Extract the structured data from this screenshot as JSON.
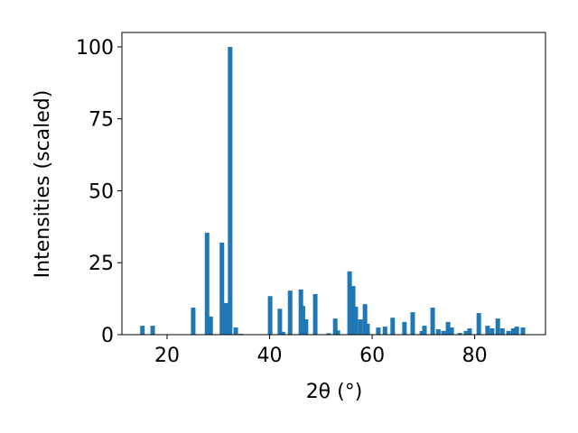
{
  "chart_data": {
    "type": "bar",
    "xlabel": "2θ (°)",
    "ylabel": "Intensities (scaled)",
    "color": "#1f77b4",
    "x": [
      15.2,
      17.2,
      25.1,
      27.8,
      28.5,
      30.7,
      31.5,
      32.3,
      33.4,
      34.4,
      40.1,
      42.0,
      42.6,
      44.0,
      46.1,
      46.5,
      47.1,
      48.9,
      51.5,
      52.8,
      53.3,
      55.6,
      56.3,
      56.8,
      57.7,
      58.6,
      59.1,
      61.2,
      62.5,
      64.0,
      66.3,
      67.9,
      69.7,
      70.2,
      71.8,
      72.9,
      73.9,
      74.8,
      75.5,
      77.1,
      78.3,
      79.0,
      80.8,
      82.5,
      83.4,
      84.5,
      85.4,
      86.6,
      87.5,
      88.2,
      89.4
    ],
    "values": [
      3.1,
      3.1,
      9.4,
      35.4,
      6.3,
      32,
      11,
      100,
      2.5,
      0.3,
      13.4,
      9,
      1,
      15.3,
      15.7,
      10,
      5.3,
      14.1,
      0.5,
      5.6,
      1.5,
      22,
      16.9,
      9.7,
      5.3,
      10.6,
      3.8,
      2.5,
      2.8,
      5.9,
      4.4,
      7.8,
      1.3,
      3.1,
      9.4,
      1.9,
      1.3,
      4.4,
      2.5,
      0.6,
      1.3,
      2.2,
      7.5,
      3.1,
      2.2,
      5.6,
      2.2,
      1.3,
      2.2,
      2.8,
      2.5
    ],
    "xlim": [
      11.2,
      93.8
    ],
    "ylim": [
      0,
      105
    ],
    "xticks": [
      20,
      40,
      60,
      80
    ],
    "yticks": [
      0,
      25,
      50,
      75,
      100
    ]
  }
}
